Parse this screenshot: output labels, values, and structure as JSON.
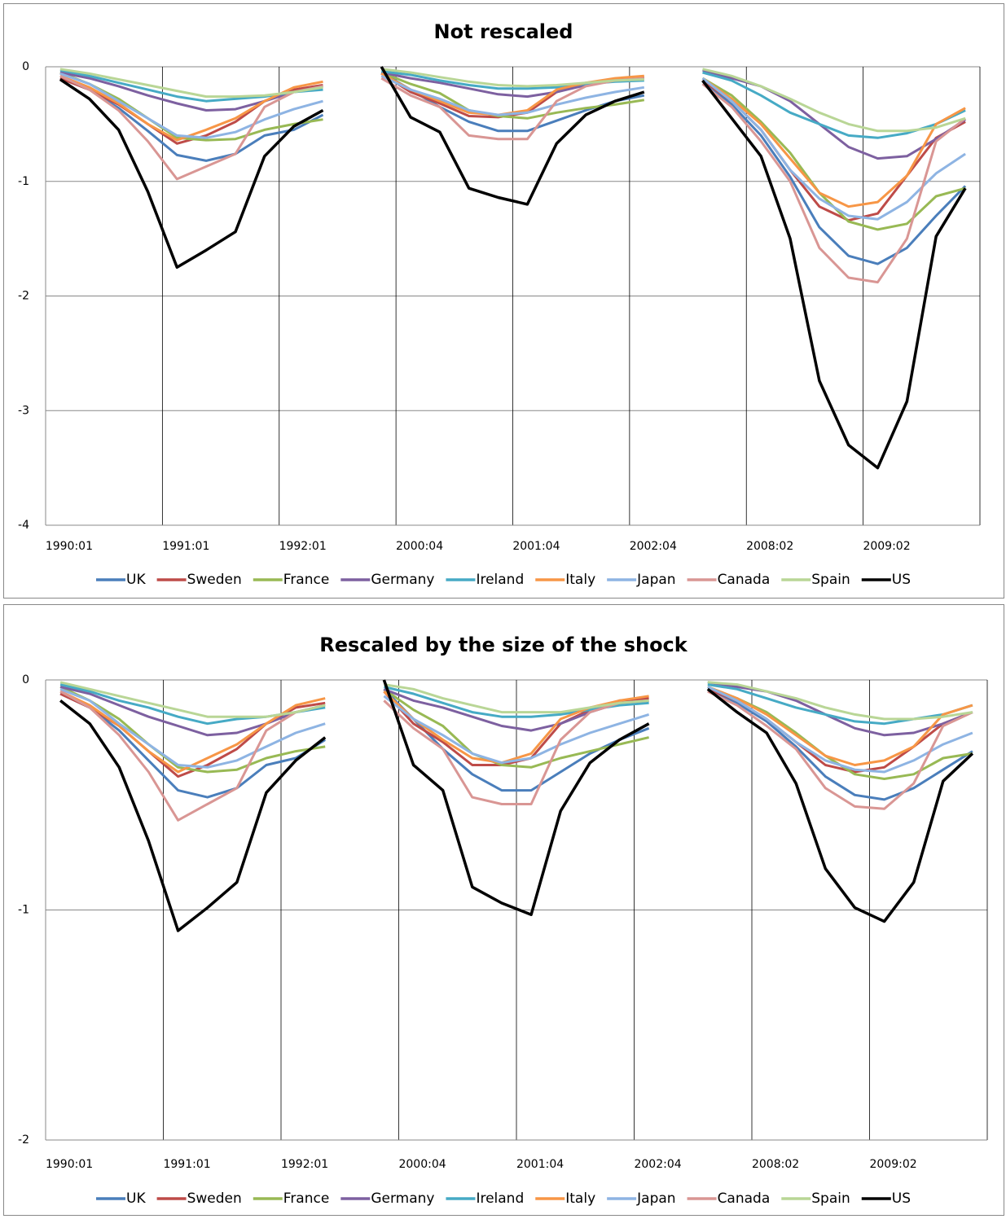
{
  "chart_data": [
    {
      "type": "line",
      "title": "Not rescaled",
      "categories": [
        "1990:01",
        null,
        null,
        null,
        "1991:01",
        null,
        null,
        null,
        "1992:01",
        null,
        null,
        null,
        "2000:04",
        null,
        null,
        null,
        "2001:04",
        null,
        null,
        null,
        "2002:04",
        null,
        null,
        null,
        "2008:02",
        null,
        null,
        null,
        "2009:02",
        null,
        null,
        null
      ],
      "ylim": [
        -4,
        0
      ],
      "yticks": [
        -4,
        -3,
        -2,
        -1,
        0
      ],
      "grid": true,
      "series": [
        {
          "name": "UK",
          "color": "#4a7ebb",
          "values": [
            -0.1,
            -0.2,
            -0.36,
            -0.56,
            -0.77,
            -0.82,
            -0.76,
            -0.6,
            -0.55,
            -0.42,
            null,
            -0.05,
            -0.2,
            -0.35,
            -0.48,
            -0.56,
            -0.56,
            -0.47,
            -0.38,
            -0.3,
            -0.25,
            null,
            -0.12,
            -0.33,
            -0.6,
            -0.96,
            -1.4,
            -1.65,
            -1.72,
            -1.58,
            -1.3,
            -1.04
          ]
        },
        {
          "name": "Sweden",
          "color": "#be4b48",
          "values": [
            -0.1,
            -0.2,
            -0.33,
            -0.5,
            -0.67,
            -0.6,
            -0.48,
            -0.3,
            -0.2,
            -0.16,
            null,
            -0.06,
            -0.22,
            -0.32,
            -0.43,
            -0.44,
            -0.4,
            -0.22,
            -0.15,
            -0.11,
            -0.09,
            null,
            -0.12,
            -0.3,
            -0.55,
            -0.9,
            -1.22,
            -1.34,
            -1.28,
            -0.95,
            -0.62,
            -0.48
          ]
        },
        {
          "name": "France",
          "color": "#98b954",
          "values": [
            -0.05,
            -0.15,
            -0.28,
            -0.45,
            -0.62,
            -0.64,
            -0.63,
            -0.55,
            -0.5,
            -0.46,
            null,
            -0.05,
            -0.15,
            -0.23,
            -0.38,
            -0.43,
            -0.45,
            -0.4,
            -0.36,
            -0.33,
            -0.29,
            null,
            -0.1,
            -0.25,
            -0.48,
            -0.75,
            -1.1,
            -1.35,
            -1.42,
            -1.37,
            -1.13,
            -1.06
          ]
        },
        {
          "name": "Germany",
          "color": "#7d60a0",
          "values": [
            -0.05,
            -0.1,
            -0.17,
            -0.25,
            -0.32,
            -0.38,
            -0.37,
            -0.3,
            -0.22,
            -0.17,
            null,
            -0.05,
            -0.1,
            -0.14,
            -0.19,
            -0.24,
            -0.26,
            -0.22,
            -0.16,
            -0.12,
            -0.1,
            null,
            -0.03,
            -0.1,
            -0.17,
            -0.3,
            -0.5,
            -0.7,
            -0.8,
            -0.78,
            -0.63,
            -0.46
          ]
        },
        {
          "name": "Ireland",
          "color": "#46aac5",
          "values": [
            -0.03,
            -0.08,
            -0.14,
            -0.2,
            -0.26,
            -0.3,
            -0.28,
            -0.26,
            -0.22,
            -0.2,
            null,
            -0.04,
            -0.07,
            -0.12,
            -0.16,
            -0.19,
            -0.19,
            -0.18,
            -0.15,
            -0.13,
            -0.12,
            null,
            -0.05,
            -0.12,
            -0.25,
            -0.4,
            -0.5,
            -0.6,
            -0.62,
            -0.58,
            -0.5,
            -0.38
          ]
        },
        {
          "name": "Italy",
          "color": "#f79646",
          "values": [
            -0.08,
            -0.18,
            -0.32,
            -0.5,
            -0.64,
            -0.55,
            -0.45,
            -0.3,
            -0.18,
            -0.13,
            null,
            -0.06,
            -0.2,
            -0.3,
            -0.4,
            -0.42,
            -0.38,
            -0.2,
            -0.14,
            -0.1,
            -0.08,
            null,
            -0.1,
            -0.28,
            -0.5,
            -0.8,
            -1.1,
            -1.22,
            -1.18,
            -0.95,
            -0.5,
            -0.36
          ]
        },
        {
          "name": "Japan",
          "color": "#8eb4e3",
          "values": [
            -0.06,
            -0.15,
            -0.3,
            -0.45,
            -0.6,
            -0.62,
            -0.57,
            -0.46,
            -0.37,
            -0.3,
            null,
            -0.08,
            -0.2,
            -0.28,
            -0.38,
            -0.42,
            -0.4,
            -0.33,
            -0.27,
            -0.22,
            -0.18,
            null,
            -0.1,
            -0.3,
            -0.55,
            -0.9,
            -1.15,
            -1.3,
            -1.33,
            -1.18,
            -0.93,
            -0.76
          ]
        },
        {
          "name": "Canada",
          "color": "#d99694",
          "values": [
            -0.08,
            -0.2,
            -0.38,
            -0.65,
            -0.98,
            -0.87,
            -0.76,
            -0.35,
            -0.22,
            -0.17,
            null,
            -0.1,
            -0.25,
            -0.35,
            -0.6,
            -0.63,
            -0.63,
            -0.3,
            -0.17,
            -0.12,
            -0.1,
            null,
            -0.15,
            -0.35,
            -0.65,
            -1.0,
            -1.58,
            -1.84,
            -1.88,
            -1.5,
            -0.65,
            -0.45
          ]
        },
        {
          "name": "Spain",
          "color": "#b9d696",
          "values": [
            -0.02,
            -0.06,
            -0.11,
            -0.16,
            -0.21,
            -0.26,
            -0.26,
            -0.25,
            -0.22,
            -0.18,
            null,
            -0.02,
            -0.05,
            -0.09,
            -0.13,
            -0.16,
            -0.17,
            -0.16,
            -0.14,
            -0.12,
            -0.11,
            null,
            -0.02,
            -0.08,
            -0.17,
            -0.28,
            -0.4,
            -0.5,
            -0.56,
            -0.56,
            -0.53,
            -0.45
          ]
        },
        {
          "name": "US",
          "color": "#000000",
          "values": [
            -0.11,
            -0.28,
            -0.55,
            -1.09,
            -1.75,
            -1.6,
            -1.44,
            -0.78,
            -0.52,
            -0.38,
            null,
            0,
            -0.44,
            -0.57,
            -1.06,
            -1.14,
            -1.2,
            -0.67,
            -0.42,
            -0.3,
            -0.22,
            null,
            -0.12,
            -0.45,
            -0.78,
            -1.5,
            -2.74,
            -3.3,
            -3.5,
            -2.92,
            -1.48,
            -1.06
          ]
        }
      ]
    },
    {
      "type": "line",
      "title": "Rescaled by the size of the shock",
      "categories": [
        "1990:01",
        null,
        null,
        null,
        "1991:01",
        null,
        null,
        null,
        "1992:01",
        null,
        null,
        null,
        "2000:04",
        null,
        null,
        null,
        "2001:04",
        null,
        null,
        null,
        "2002:04",
        null,
        null,
        null,
        "2008:02",
        null,
        null,
        null,
        "2009:02",
        null,
        null,
        null
      ],
      "ylim": [
        -2,
        0
      ],
      "yticks": [
        -2,
        -1,
        0
      ],
      "grid": true,
      "series": [
        {
          "name": "UK",
          "color": "#4a7ebb",
          "values": [
            -0.06,
            -0.12,
            -0.22,
            -0.35,
            -0.48,
            -0.51,
            -0.47,
            -0.37,
            -0.34,
            -0.26,
            null,
            -0.04,
            -0.17,
            -0.3,
            -0.41,
            -0.48,
            -0.48,
            -0.4,
            -0.32,
            -0.26,
            -0.21,
            null,
            -0.04,
            -0.1,
            -0.18,
            -0.29,
            -0.42,
            -0.5,
            -0.52,
            -0.47,
            -0.39,
            -0.31
          ]
        },
        {
          "name": "Sweden",
          "color": "#be4b48",
          "values": [
            -0.06,
            -0.12,
            -0.2,
            -0.31,
            -0.42,
            -0.37,
            -0.3,
            -0.19,
            -0.12,
            -0.1,
            null,
            -0.05,
            -0.19,
            -0.27,
            -0.37,
            -0.37,
            -0.34,
            -0.19,
            -0.13,
            -0.09,
            -0.08,
            null,
            -0.04,
            -0.09,
            -0.17,
            -0.27,
            -0.37,
            -0.4,
            -0.38,
            -0.29,
            -0.19,
            -0.14
          ]
        },
        {
          "name": "France",
          "color": "#98b954",
          "values": [
            -0.03,
            -0.09,
            -0.17,
            -0.28,
            -0.38,
            -0.4,
            -0.39,
            -0.34,
            -0.31,
            -0.29,
            null,
            -0.04,
            -0.13,
            -0.2,
            -0.32,
            -0.37,
            -0.38,
            -0.34,
            -0.31,
            -0.28,
            -0.25,
            null,
            -0.03,
            -0.08,
            -0.14,
            -0.23,
            -0.33,
            -0.41,
            -0.43,
            -0.41,
            -0.34,
            -0.32
          ]
        },
        {
          "name": "Germany",
          "color": "#7d60a0",
          "values": [
            -0.03,
            -0.06,
            -0.11,
            -0.16,
            -0.2,
            -0.24,
            -0.23,
            -0.19,
            -0.14,
            -0.11,
            null,
            -0.04,
            -0.09,
            -0.12,
            -0.16,
            -0.2,
            -0.22,
            -0.19,
            -0.14,
            -0.1,
            -0.09,
            null,
            -0.01,
            -0.03,
            -0.05,
            -0.09,
            -0.15,
            -0.21,
            -0.24,
            -0.23,
            -0.19,
            -0.14
          ]
        },
        {
          "name": "Ireland",
          "color": "#46aac5",
          "values": [
            -0.02,
            -0.05,
            -0.09,
            -0.12,
            -0.16,
            -0.19,
            -0.17,
            -0.16,
            -0.14,
            -0.12,
            null,
            -0.03,
            -0.06,
            -0.1,
            -0.14,
            -0.16,
            -0.16,
            -0.15,
            -0.13,
            -0.11,
            -0.1,
            null,
            -0.02,
            -0.04,
            -0.08,
            -0.12,
            -0.15,
            -0.18,
            -0.19,
            -0.17,
            -0.15,
            -0.11
          ]
        },
        {
          "name": "Italy",
          "color": "#f79646",
          "values": [
            -0.05,
            -0.11,
            -0.2,
            -0.31,
            -0.4,
            -0.34,
            -0.28,
            -0.19,
            -0.11,
            -0.08,
            null,
            -0.05,
            -0.17,
            -0.26,
            -0.34,
            -0.36,
            -0.32,
            -0.17,
            -0.12,
            -0.09,
            -0.07,
            null,
            -0.03,
            -0.08,
            -0.15,
            -0.24,
            -0.33,
            -0.37,
            -0.35,
            -0.29,
            -0.15,
            -0.11
          ]
        },
        {
          "name": "Japan",
          "color": "#8eb4e3",
          "values": [
            -0.04,
            -0.09,
            -0.19,
            -0.28,
            -0.37,
            -0.38,
            -0.35,
            -0.29,
            -0.23,
            -0.19,
            null,
            -0.07,
            -0.17,
            -0.24,
            -0.32,
            -0.36,
            -0.34,
            -0.28,
            -0.23,
            -0.19,
            -0.15,
            null,
            -0.03,
            -0.09,
            -0.17,
            -0.27,
            -0.35,
            -0.39,
            -0.4,
            -0.35,
            -0.28,
            -0.23
          ]
        },
        {
          "name": "Canada",
          "color": "#d99694",
          "values": [
            -0.05,
            -0.12,
            -0.24,
            -0.4,
            -0.61,
            -0.54,
            -0.47,
            -0.22,
            -0.14,
            -0.11,
            null,
            -0.09,
            -0.21,
            -0.3,
            -0.51,
            -0.54,
            -0.54,
            -0.26,
            -0.14,
            -0.1,
            -0.09,
            null,
            -0.05,
            -0.11,
            -0.2,
            -0.3,
            -0.47,
            -0.55,
            -0.56,
            -0.45,
            -0.2,
            -0.14
          ]
        },
        {
          "name": "Spain",
          "color": "#b9d696",
          "values": [
            -0.01,
            -0.04,
            -0.07,
            -0.1,
            -0.13,
            -0.16,
            -0.16,
            -0.16,
            -0.14,
            -0.11,
            null,
            -0.02,
            -0.04,
            -0.08,
            -0.11,
            -0.14,
            -0.14,
            -0.14,
            -0.12,
            -0.1,
            -0.09,
            null,
            -0.01,
            -0.02,
            -0.05,
            -0.08,
            -0.12,
            -0.15,
            -0.17,
            -0.17,
            -0.16,
            -0.14
          ]
        },
        {
          "name": "US",
          "color": "#000000",
          "values": [
            -0.09,
            -0.19,
            -0.38,
            -0.7,
            -1.09,
            -0.99,
            -0.88,
            -0.49,
            -0.35,
            -0.25,
            null,
            0,
            -0.37,
            -0.48,
            -0.9,
            -0.97,
            -1.02,
            -0.57,
            -0.36,
            -0.26,
            -0.19,
            null,
            -0.04,
            -0.14,
            -0.23,
            -0.45,
            -0.82,
            -0.99,
            -1.05,
            -0.88,
            -0.44,
            -0.32
          ]
        }
      ]
    }
  ]
}
